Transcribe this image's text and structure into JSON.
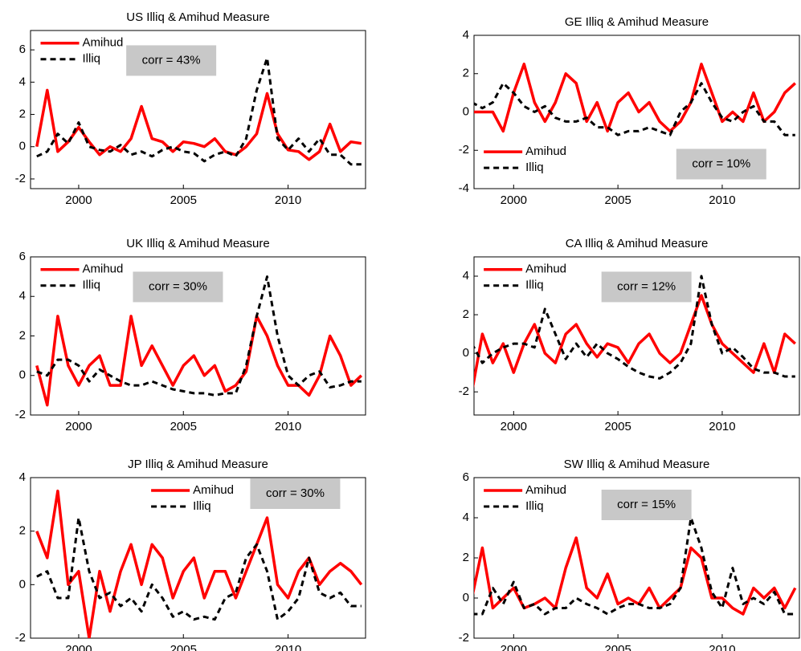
{
  "chart_data": [
    {
      "type": "line",
      "title": "US Illiq & Amihud Measure",
      "annotation": "corr = 43%",
      "legend": "upper left",
      "x": [
        1998,
        1998.5,
        1999,
        1999.5,
        2000,
        2000.5,
        2001,
        2001.5,
        2002,
        2002.5,
        2003,
        2003.5,
        2004,
        2004.5,
        2005,
        2005.5,
        2006,
        2006.5,
        2007,
        2007.5,
        2008,
        2008.5,
        2009,
        2009.5,
        2010,
        2010.5,
        2011,
        2011.5,
        2012,
        2012.5,
        2013,
        2013.5
      ],
      "xlim": [
        1997.7,
        2013.7
      ],
      "xticks": [
        2000,
        2005,
        2010
      ],
      "ylim": [
        -2.6,
        7.2
      ],
      "yticks": [
        -2,
        0,
        2,
        4,
        6
      ],
      "series": [
        {
          "name": "Amihud",
          "color": "#ff0000",
          "linestyle": "solid",
          "values": [
            0,
            3.5,
            -0.3,
            0.3,
            1.2,
            0.3,
            -0.5,
            0,
            -0.3,
            0.5,
            2.5,
            0.5,
            0.3,
            -0.3,
            0.3,
            0.2,
            0,
            0.5,
            -0.3,
            -0.5,
            0,
            0.8,
            3.3,
            0.8,
            -0.2,
            -0.3,
            -0.8,
            -0.3,
            1.4,
            -0.3,
            0.3,
            0.2
          ]
        },
        {
          "name": "Illiq",
          "color": "#000000",
          "linestyle": "dashed",
          "values": [
            -0.6,
            -0.3,
            0.8,
            0.2,
            1.5,
            0,
            -0.2,
            -0.3,
            0.1,
            -0.5,
            -0.3,
            -0.6,
            -0.2,
            0,
            -0.3,
            -0.4,
            -0.9,
            -0.5,
            -0.3,
            -0.6,
            0.5,
            3.5,
            5.5,
            0.5,
            -0.2,
            0.5,
            -0.3,
            0.5,
            -0.5,
            -0.5,
            -1.1,
            -1.1
          ]
        }
      ]
    },
    {
      "type": "line",
      "title": "GE Illiq & Amihud Measure",
      "annotation": "corr = 10%",
      "legend": "lower left",
      "x": [
        1998,
        1998.5,
        1999,
        1999.5,
        2000,
        2000.5,
        2001,
        2001.5,
        2002,
        2002.5,
        2003,
        2003.5,
        2004,
        2004.5,
        2005,
        2005.5,
        2006,
        2006.5,
        2007,
        2007.5,
        2008,
        2008.5,
        2009,
        2009.5,
        2010,
        2010.5,
        2011,
        2011.5,
        2012,
        2012.5,
        2013,
        2013.5
      ],
      "xlim": [
        1998.1,
        2013.7
      ],
      "xticks": [
        2000,
        2005,
        2010
      ],
      "ylim": [
        -4,
        4
      ],
      "yticks": [
        -4,
        -2,
        0,
        2,
        4
      ],
      "series": [
        {
          "name": "Amihud",
          "color": "#ff0000",
          "linestyle": "solid",
          "values": [
            0,
            0,
            0,
            -1,
            1,
            2.5,
            0.5,
            -0.5,
            0.5,
            2,
            1.5,
            -0.5,
            0.5,
            -1,
            0.5,
            1,
            0,
            0.5,
            -0.5,
            -1,
            -0.5,
            0.5,
            2.5,
            1,
            -0.5,
            0,
            -0.5,
            1,
            -0.5,
            0,
            1,
            1.5
          ]
        },
        {
          "name": "Illiq",
          "color": "#000000",
          "linestyle": "dashed",
          "values": [
            0.5,
            0.2,
            0.5,
            1.5,
            1,
            0.3,
            0,
            0.3,
            -0.3,
            -0.5,
            -0.5,
            -0.3,
            -0.8,
            -0.8,
            -1.2,
            -1,
            -1,
            -0.8,
            -1,
            -1.2,
            0,
            0.5,
            1.5,
            0.5,
            -0.3,
            -0.5,
            0,
            0.3,
            -0.5,
            -0.5,
            -1.2,
            -1.2
          ]
        }
      ]
    },
    {
      "type": "line",
      "title": "UK Illiq & Amihud Measure",
      "annotation": "corr = 30%",
      "legend": "upper left",
      "x": [
        1998,
        1998.5,
        1999,
        1999.5,
        2000,
        2000.5,
        2001,
        2001.5,
        2002,
        2002.5,
        2003,
        2003.5,
        2004,
        2004.5,
        2005,
        2005.5,
        2006,
        2006.5,
        2007,
        2007.5,
        2008,
        2008.5,
        2009,
        2009.5,
        2010,
        2010.5,
        2011,
        2011.5,
        2012,
        2012.5,
        2013,
        2013.5
      ],
      "xlim": [
        1997.7,
        2013.7
      ],
      "xticks": [
        2000,
        2005,
        2010
      ],
      "ylim": [
        -2,
        6
      ],
      "yticks": [
        -2,
        0,
        2,
        4,
        6
      ],
      "series": [
        {
          "name": "Amihud",
          "color": "#ff0000",
          "linestyle": "solid",
          "values": [
            0.5,
            -1.5,
            3,
            0.5,
            -0.5,
            0.5,
            1,
            -0.5,
            -0.5,
            3,
            0.5,
            1.5,
            0.5,
            -0.5,
            0.5,
            1,
            0,
            0.5,
            -0.8,
            -0.5,
            0.2,
            3,
            2,
            0.5,
            -0.5,
            -0.5,
            -1,
            0,
            2,
            1,
            -0.5,
            0
          ]
        },
        {
          "name": "Illiq",
          "color": "#000000",
          "linestyle": "dashed",
          "values": [
            0.2,
            0,
            0.8,
            0.8,
            0.5,
            -0.3,
            0.3,
            0,
            -0.3,
            -0.5,
            -0.5,
            -0.3,
            -0.5,
            -0.7,
            -0.8,
            -0.9,
            -0.9,
            -1,
            -0.9,
            -0.9,
            0.5,
            3,
            5,
            2,
            0,
            -0.5,
            0,
            0.2,
            -0.6,
            -0.5,
            -0.3,
            -0.3
          ]
        }
      ]
    },
    {
      "type": "line",
      "title": "CA Illiq & Amihud Measure",
      "annotation": "corr = 12%",
      "legend": "upper left",
      "x": [
        1998,
        1998.5,
        1999,
        1999.5,
        2000,
        2000.5,
        2001,
        2001.5,
        2002,
        2002.5,
        2003,
        2003.5,
        2004,
        2004.5,
        2005,
        2005.5,
        2006,
        2006.5,
        2007,
        2007.5,
        2008,
        2008.5,
        2009,
        2009.5,
        2010,
        2010.5,
        2011,
        2011.5,
        2012,
        2012.5,
        2013,
        2013.5
      ],
      "xlim": [
        1998.1,
        2013.7
      ],
      "xticks": [
        2000,
        2005,
        2010
      ],
      "ylim": [
        -3.2,
        5
      ],
      "yticks": [
        -2,
        0,
        2,
        4
      ],
      "series": [
        {
          "name": "Amihud",
          "color": "#ff0000",
          "linestyle": "solid",
          "values": [
            -2,
            1,
            -0.5,
            0.5,
            -1,
            0.5,
            1.5,
            0,
            -0.5,
            1,
            1.5,
            0.5,
            -0.2,
            0.5,
            0.3,
            -0.5,
            0.5,
            1,
            0,
            -0.5,
            0,
            1.5,
            3,
            1.5,
            0.5,
            0,
            -0.5,
            -1,
            0.5,
            -1,
            1,
            0.5
          ]
        },
        {
          "name": "Illiq",
          "color": "#000000",
          "linestyle": "dashed",
          "values": [
            0.5,
            -0.5,
            0,
            0.3,
            0.5,
            0.5,
            0.3,
            2.3,
            1,
            -0.3,
            0.5,
            -0.2,
            0.5,
            0,
            -0.3,
            -0.7,
            -1,
            -1.2,
            -1.3,
            -1,
            -0.5,
            0.5,
            4,
            1.5,
            0,
            0.3,
            -0.2,
            -0.8,
            -1,
            -1,
            -1.2,
            -1.2
          ]
        }
      ]
    },
    {
      "type": "line",
      "title": "JP Illiq & Amihud Measure",
      "annotation": "corr = 30%",
      "legend": "upper center",
      "x": [
        1998,
        1998.5,
        1999,
        1999.5,
        2000,
        2000.5,
        2001,
        2001.5,
        2002,
        2002.5,
        2003,
        2003.5,
        2004,
        2004.5,
        2005,
        2005.5,
        2006,
        2006.5,
        2007,
        2007.5,
        2008,
        2008.5,
        2009,
        2009.5,
        2010,
        2010.5,
        2011,
        2011.5,
        2012,
        2012.5,
        2013,
        2013.5
      ],
      "xlim": [
        1997.7,
        2013.7
      ],
      "xticks": [
        2000,
        2005,
        2010
      ],
      "ylim": [
        -2,
        4
      ],
      "yticks": [
        -2,
        0,
        2,
        4
      ],
      "series": [
        {
          "name": "Amihud",
          "color": "#ff0000",
          "linestyle": "solid",
          "values": [
            2,
            1,
            3.5,
            0,
            0.5,
            -2,
            0.5,
            -1,
            0.5,
            1.5,
            0,
            1.5,
            1,
            -0.5,
            0.5,
            1,
            -0.5,
            0.5,
            0.5,
            -0.5,
            0.5,
            1.5,
            2.5,
            0,
            -0.5,
            0.5,
            1,
            0,
            0.5,
            0.8,
            0.5,
            0
          ]
        },
        {
          "name": "Illiq",
          "color": "#000000",
          "linestyle": "dashed",
          "values": [
            0.3,
            0.5,
            -0.5,
            -0.5,
            2.5,
            0.5,
            -0.5,
            -0.3,
            -0.8,
            -0.5,
            -1,
            0,
            -0.5,
            -1.2,
            -1,
            -1.3,
            -1.2,
            -1.3,
            -0.5,
            -0.3,
            1,
            1.5,
            0.5,
            -1.3,
            -1,
            -0.5,
            1,
            -0.3,
            -0.5,
            -0.3,
            -0.8,
            -0.8
          ]
        }
      ]
    },
    {
      "type": "line",
      "title": "SW Illiq & Amihud Measure",
      "annotation": "corr = 15%",
      "legend": "upper left",
      "x": [
        1998,
        1998.5,
        1999,
        1999.5,
        2000,
        2000.5,
        2001,
        2001.5,
        2002,
        2002.5,
        2003,
        2003.5,
        2004,
        2004.5,
        2005,
        2005.5,
        2006,
        2006.5,
        2007,
        2007.5,
        2008,
        2008.5,
        2009,
        2009.5,
        2010,
        2010.5,
        2011,
        2011.5,
        2012,
        2012.5,
        2013,
        2013.5
      ],
      "xlim": [
        1998.1,
        2013.7
      ],
      "xticks": [
        2000,
        2005,
        2010
      ],
      "ylim": [
        -2,
        6
      ],
      "yticks": [
        -2,
        0,
        2,
        4,
        6
      ],
      "series": [
        {
          "name": "Amihud",
          "color": "#ff0000",
          "linestyle": "solid",
          "values": [
            0,
            2.5,
            -0.5,
            0,
            0.5,
            -0.5,
            -0.3,
            0,
            -0.5,
            1.5,
            3,
            0.5,
            0,
            1.2,
            -0.3,
            0,
            -0.3,
            0.5,
            -0.5,
            0,
            0.5,
            2.5,
            2,
            0,
            0,
            -0.5,
            -0.8,
            0.5,
            0,
            0.5,
            -0.5,
            0.5
          ]
        },
        {
          "name": "Illiq",
          "color": "#000000",
          "linestyle": "dashed",
          "values": [
            -0.8,
            -0.8,
            0.5,
            -0.3,
            0.8,
            -0.5,
            -0.3,
            -0.8,
            -0.5,
            -0.5,
            0,
            -0.3,
            -0.5,
            -0.8,
            -0.5,
            -0.3,
            -0.3,
            -0.5,
            -0.5,
            -0.3,
            0.5,
            4,
            2.5,
            0.3,
            -0.5,
            1.5,
            -0.3,
            0,
            -0.3,
            0.3,
            -0.8,
            -0.8
          ]
        }
      ]
    }
  ]
}
